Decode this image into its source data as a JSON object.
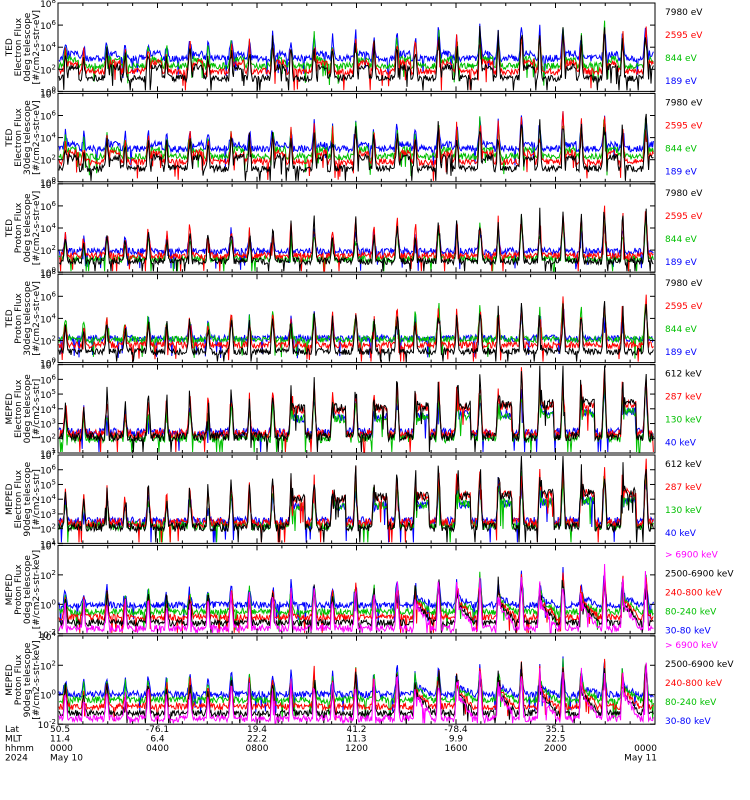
{
  "chart_data": [
    {
      "type": "line",
      "ylabel": [
        "TED",
        "Electron Flux",
        "0deg telescope",
        "[#/cm2-s-str-eV]"
      ],
      "y_log": true,
      "yticks": [
        "10^0",
        "10^2",
        "10^4",
        "10^6",
        "10^8"
      ],
      "ylim_exp": [
        0,
        8
      ],
      "series": [
        {
          "name": "7980 eV",
          "color": "#000000",
          "base": 1.2
        },
        {
          "name": "2595 eV",
          "color": "#ff0000",
          "base": 1.8
        },
        {
          "name": "844 eV",
          "color": "#00c000",
          "base": 2.3
        },
        {
          "name": "189 eV",
          "color": "#0000ff",
          "base": 3.0
        }
      ]
    },
    {
      "type": "line",
      "ylabel": [
        "TED",
        "Electron Flux",
        "30deg telescope",
        "[#/cm2-s-str-eV]"
      ],
      "y_log": true,
      "yticks": [
        "10^0",
        "10^2",
        "10^4",
        "10^6",
        "10^8"
      ],
      "ylim_exp": [
        0,
        8
      ],
      "series": [
        {
          "name": "7980 eV",
          "color": "#000000",
          "base": 1.2
        },
        {
          "name": "2595 eV",
          "color": "#ff0000",
          "base": 1.8
        },
        {
          "name": "844 eV",
          "color": "#00c000",
          "base": 2.3
        },
        {
          "name": "189 eV",
          "color": "#0000ff",
          "base": 3.0
        }
      ]
    },
    {
      "type": "line",
      "ylabel": [
        "TED",
        "Proton Flux",
        "0deg telescope",
        "[#/cm2-s-str-eV]"
      ],
      "y_log": true,
      "yticks": [
        "10^0",
        "10^2",
        "10^4",
        "10^6",
        "10^8"
      ],
      "ylim_exp": [
        0,
        8
      ],
      "series": [
        {
          "name": "7980 eV",
          "color": "#000000",
          "base": 1.0
        },
        {
          "name": "2595 eV",
          "color": "#ff0000",
          "base": 1.5
        },
        {
          "name": "844 eV",
          "color": "#00c000",
          "base": 1.2
        },
        {
          "name": "189 eV",
          "color": "#0000ff",
          "base": 1.9
        }
      ]
    },
    {
      "type": "line",
      "ylabel": [
        "TED",
        "Proton Flux",
        "30deg telescope",
        "[#/cm2-s-str-eV]"
      ],
      "y_log": true,
      "yticks": [
        "10^0",
        "10^2",
        "10^4",
        "10^6",
        "10^8"
      ],
      "ylim_exp": [
        0,
        8
      ],
      "series": [
        {
          "name": "7980 eV",
          "color": "#000000",
          "base": 1.0
        },
        {
          "name": "2595 eV",
          "color": "#ff0000",
          "base": 1.6
        },
        {
          "name": "844 eV",
          "color": "#00c000",
          "base": 2.1
        },
        {
          "name": "189 eV",
          "color": "#0000ff",
          "base": 2.2
        }
      ]
    },
    {
      "type": "line",
      "ylabel": [
        "MEPED",
        "Electron Flux",
        "0deg telescope",
        "[#/cm2-s-str]"
      ],
      "y_log": true,
      "yticks": [
        "10^1",
        "10^2",
        "10^3",
        "10^4",
        "10^5",
        "10^6",
        "10^7"
      ],
      "ylim_exp": [
        1,
        7
      ],
      "series": [
        {
          "name": "612 keV",
          "color": "#000000",
          "base": 2.1
        },
        {
          "name": "287 keV",
          "color": "#ff0000",
          "base": 2.3
        },
        {
          "name": "130 keV",
          "color": "#00c000",
          "base": 2.0
        },
        {
          "name": "40 keV",
          "color": "#0000ff",
          "base": 2.4
        }
      ]
    },
    {
      "type": "line",
      "ylabel": [
        "MEPED",
        "Electron Flux",
        "90deg telescope",
        "[#/cm2-s-str]"
      ],
      "y_log": true,
      "yticks": [
        "10^1",
        "10^2",
        "10^3",
        "10^4",
        "10^5",
        "10^6",
        "10^7"
      ],
      "ylim_exp": [
        1,
        7
      ],
      "series": [
        {
          "name": "612 keV",
          "color": "#000000",
          "base": 2.1
        },
        {
          "name": "287 keV",
          "color": "#ff0000",
          "base": 2.4
        },
        {
          "name": "130 keV",
          "color": "#00c000",
          "base": 2.2
        },
        {
          "name": "40 keV",
          "color": "#0000ff",
          "base": 2.5
        }
      ]
    },
    {
      "type": "line",
      "ylabel": [
        "MEPED",
        "Proton Flux",
        "0deg telescope",
        "[#/cm2-s-str-keV]"
      ],
      "y_log": true,
      "yticks": [
        "10^-2",
        "10^0",
        "10^2",
        "10^4"
      ],
      "ylim_exp": [
        -2,
        6
      ],
      "series": [
        {
          "name": "> 6900 keV",
          "color": "#ff00ff",
          "base": -1.5
        },
        {
          "name": "2500-6900 keV",
          "color": "#000000",
          "base": -1.0
        },
        {
          "name": "240-800 keV",
          "color": "#ff0000",
          "base": -0.5
        },
        {
          "name": "80-240 keV",
          "color": "#00c000",
          "base": 0.0
        },
        {
          "name": "30-80 keV",
          "color": "#0000ff",
          "base": 0.6
        }
      ]
    },
    {
      "type": "line",
      "ylabel": [
        "MEPED",
        "Proton Flux",
        "90deg telescope",
        "[#/cm2-s-str-keV]"
      ],
      "y_log": true,
      "yticks": [
        "10^-2",
        "10^0",
        "10^2",
        "10^4"
      ],
      "ylim_exp": [
        -2,
        6
      ],
      "series": [
        {
          "name": "> 6900 keV",
          "color": "#ff00ff",
          "base": -1.5
        },
        {
          "name": "2500-6900 keV",
          "color": "#000000",
          "base": -1.0
        },
        {
          "name": "240-800 keV",
          "color": "#ff0000",
          "base": -0.4
        },
        {
          "name": "80-240 keV",
          "color": "#00c000",
          "base": 0.2
        },
        {
          "name": "30-80 keV",
          "color": "#0000ff",
          "base": 0.7
        }
      ]
    }
  ],
  "x_axis": {
    "row_labels": [
      "Lat",
      "MLT",
      "hhmm",
      "2024"
    ],
    "columns": [
      {
        "lat": "50.5",
        "mlt": "11.4",
        "hhmm": "0000",
        "date": "May 10"
      },
      {
        "lat": "-76.1",
        "mlt": "6.4",
        "hhmm": "0400",
        "date": ""
      },
      {
        "lat": "19.4",
        "mlt": "22.2",
        "hhmm": "0800",
        "date": ""
      },
      {
        "lat": "41.2",
        "mlt": "11.3",
        "hhmm": "1200",
        "date": ""
      },
      {
        "lat": "-78.4",
        "mlt": "9.9",
        "hhmm": "1600",
        "date": ""
      },
      {
        "lat": "35.1",
        "mlt": "22.5",
        "hhmm": "2000",
        "date": ""
      },
      {
        "lat": "",
        "mlt": "",
        "hhmm": "0000",
        "date": "May 11"
      }
    ]
  }
}
